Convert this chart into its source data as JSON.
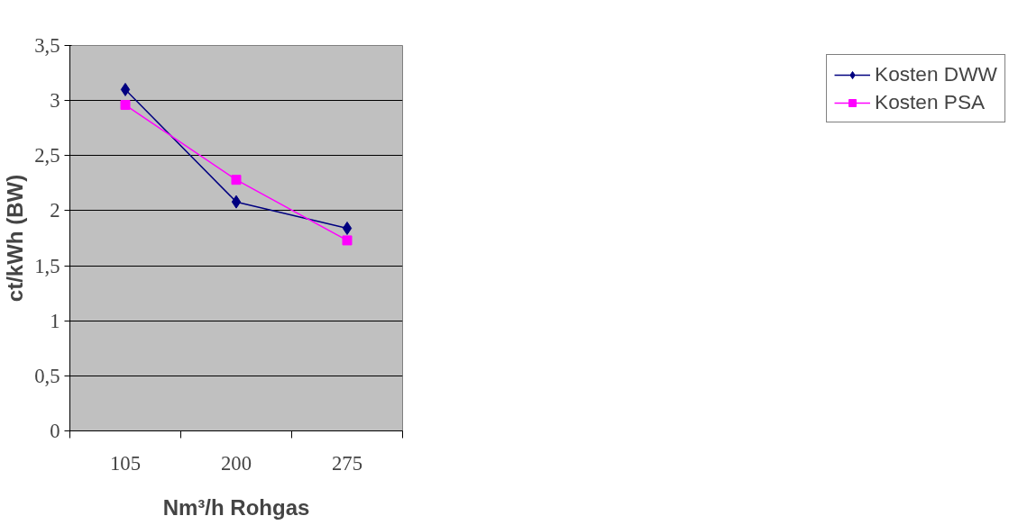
{
  "chart_data": {
    "type": "line",
    "xlabel": "Nm³/h Rohgas",
    "ylabel": "ct/kWh (BW)",
    "categories": [
      "105",
      "200",
      "275"
    ],
    "series": [
      {
        "name": "Kosten DWW",
        "color": "#000080",
        "marker": "diamond",
        "values": [
          3.1,
          2.08,
          1.84
        ]
      },
      {
        "name": "Kosten PSA",
        "color": "#ff00ff",
        "marker": "square",
        "values": [
          2.96,
          2.28,
          1.73
        ]
      }
    ],
    "ylim": [
      0,
      3.5
    ],
    "yticks": [
      {
        "value": 0,
        "label": "0"
      },
      {
        "value": 0.5,
        "label": "0,5"
      },
      {
        "value": 1,
        "label": "1"
      },
      {
        "value": 1.5,
        "label": "1,5"
      },
      {
        "value": 2,
        "label": "2"
      },
      {
        "value": 2.5,
        "label": "2,5"
      },
      {
        "value": 3,
        "label": "3"
      },
      {
        "value": 3.5,
        "label": "3,5"
      }
    ],
    "grid": "y",
    "legend": "right",
    "line_style": "solid"
  }
}
